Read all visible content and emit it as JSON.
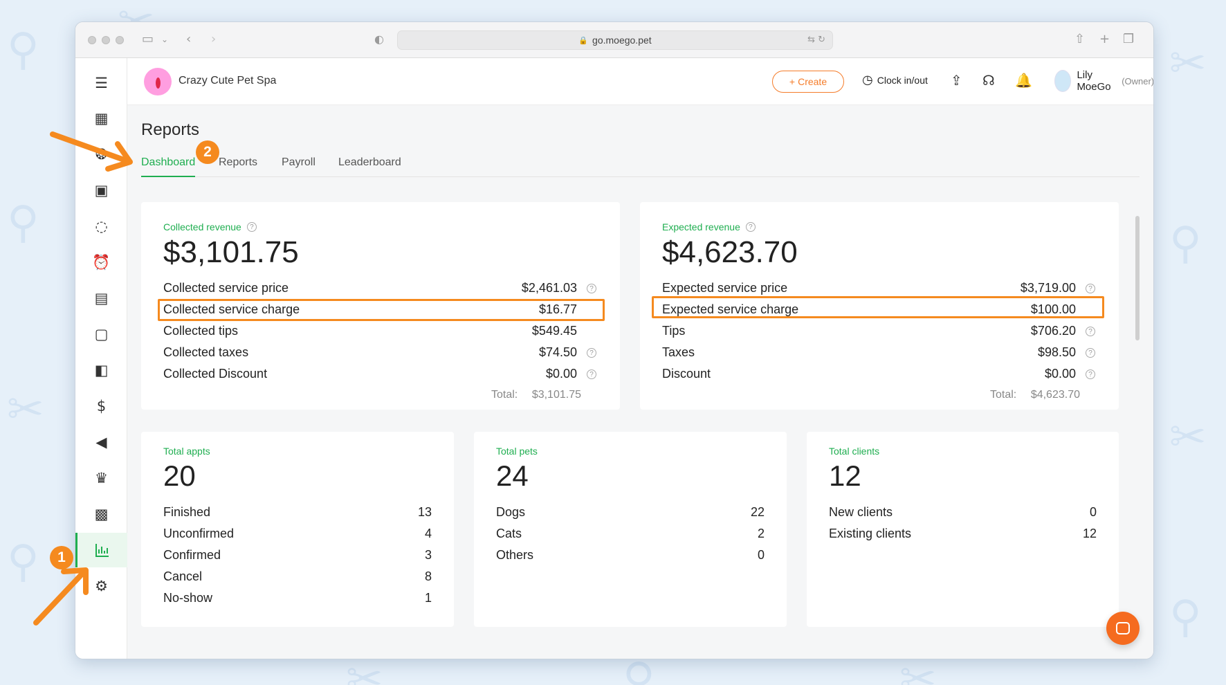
{
  "browser": {
    "url": "go.moego.pet"
  },
  "header": {
    "business_name": "Crazy Cute Pet Spa",
    "create_label": "Create",
    "clock_label": "Clock in/out",
    "user_name": "Lily MoeGo",
    "user_role": "(Owner)"
  },
  "page": {
    "title": "Reports",
    "tabs": [
      {
        "label": "Dashboard",
        "active": true
      },
      {
        "label": "Reports",
        "active": false
      },
      {
        "label": "Payroll",
        "active": false
      },
      {
        "label": "Leaderboard",
        "active": false
      }
    ]
  },
  "collected": {
    "label": "Collected revenue",
    "value": "$3,101.75",
    "rows": [
      {
        "label": "Collected service price",
        "value": "$2,461.03"
      },
      {
        "label": "Collected service charge",
        "value": "$16.77"
      },
      {
        "label": "Collected tips",
        "value": "$549.45"
      },
      {
        "label": "Collected taxes",
        "value": "$74.50"
      },
      {
        "label": "Collected Discount",
        "value": "$0.00"
      }
    ],
    "total_label": "Total:",
    "total_value": "$3,101.75"
  },
  "expected": {
    "label": "Expected revenue",
    "value": "$4,623.70",
    "rows": [
      {
        "label": "Expected service price",
        "value": "$3,719.00"
      },
      {
        "label": "Expected service charge",
        "value": "$100.00"
      },
      {
        "label": "Tips",
        "value": "$706.20"
      },
      {
        "label": "Taxes",
        "value": "$98.50"
      },
      {
        "label": "Discount",
        "value": "$0.00"
      }
    ],
    "total_label": "Total:",
    "total_value": "$4,623.70"
  },
  "appts": {
    "label": "Total appts",
    "value": "20",
    "rows": [
      {
        "label": "Finished",
        "value": "13"
      },
      {
        "label": "Unconfirmed",
        "value": "4"
      },
      {
        "label": "Confirmed",
        "value": "3"
      },
      {
        "label": "Cancel",
        "value": "8"
      },
      {
        "label": "No-show",
        "value": "1"
      }
    ]
  },
  "pets": {
    "label": "Total pets",
    "value": "24",
    "rows": [
      {
        "label": "Dogs",
        "value": "22"
      },
      {
        "label": "Cats",
        "value": "2"
      },
      {
        "label": "Others",
        "value": "0"
      }
    ]
  },
  "clients": {
    "label": "Total clients",
    "value": "12",
    "rows": [
      {
        "label": "New clients",
        "value": "0"
      },
      {
        "label": "Existing clients",
        "value": "12"
      }
    ]
  },
  "annotations": {
    "step1": "1",
    "step2": "2"
  },
  "colors": {
    "accent": "#1fae50",
    "orange": "#f58a1f",
    "create": "#f57c2a"
  }
}
